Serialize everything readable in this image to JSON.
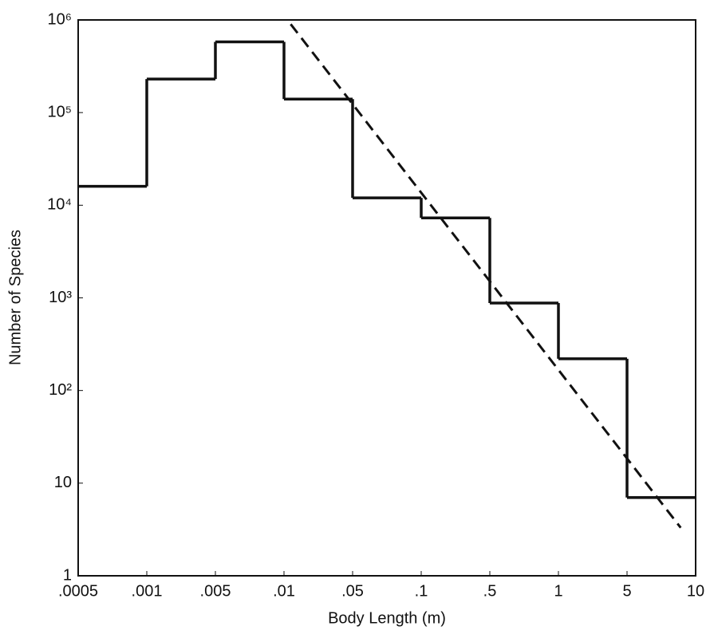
{
  "chart_data": {
    "type": "histogram",
    "xlabel": "Body Length (m)",
    "ylabel": "Number of Species",
    "bins": [
      {
        "value": 0.0005,
        "label": ".0005"
      },
      {
        "value": 0.001,
        "label": ".001"
      },
      {
        "value": 0.005,
        "label": ".005"
      },
      {
        "value": 0.01,
        "label": ".01"
      },
      {
        "value": 0.05,
        "label": ".05"
      },
      {
        "value": 0.1,
        "label": ".1"
      },
      {
        "value": 0.5,
        "label": ".5"
      },
      1,
      5,
      10
    ],
    "values": [
      16000,
      230000,
      580000,
      140000,
      12000,
      7300,
      880,
      220,
      7
    ],
    "color": "#111111",
    "fit_line": {
      "x": [
        0.0117,
        8.6
      ],
      "y": [
        900000,
        3.3
      ]
    },
    "ylim": [
      1,
      1000000
    ],
    "log_y": true,
    "yticks": [
      1,
      10,
      {
        "value": 100,
        "label": "10²"
      },
      {
        "value": 1000,
        "label": "10³"
      },
      {
        "value": 10000,
        "label": "10⁴"
      },
      {
        "value": 100000,
        "label": "10⁵"
      },
      {
        "value": 1000000,
        "label": "10⁶"
      }
    ]
  }
}
